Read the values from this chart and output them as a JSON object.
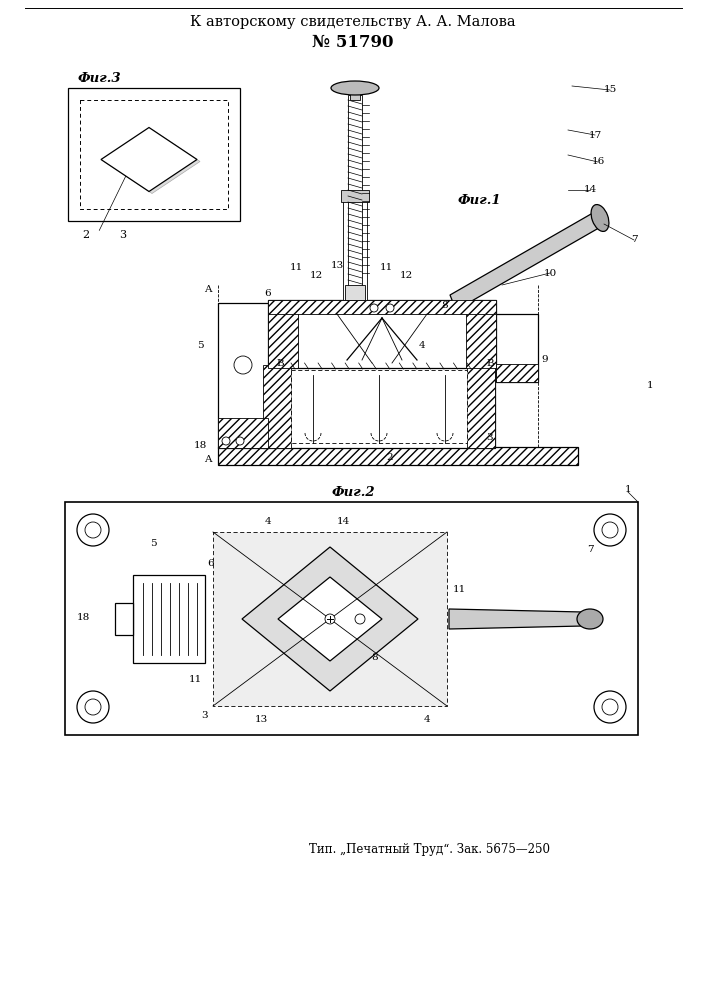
{
  "title_line1": "К авторскому свидетельству А. А. Малова",
  "title_line2": "№ 51790",
  "fig1_label": "Фиг.1",
  "fig2_label": "Фиг.2",
  "fig3_label": "Фиг.3",
  "footer": "Тип. „Печатный Труд“. Зак. 5675—250",
  "bg_color": "#ffffff",
  "lc": "#000000",
  "hatch_gray": "#999999",
  "light_gray": "#cccccc",
  "mid_gray": "#888888"
}
